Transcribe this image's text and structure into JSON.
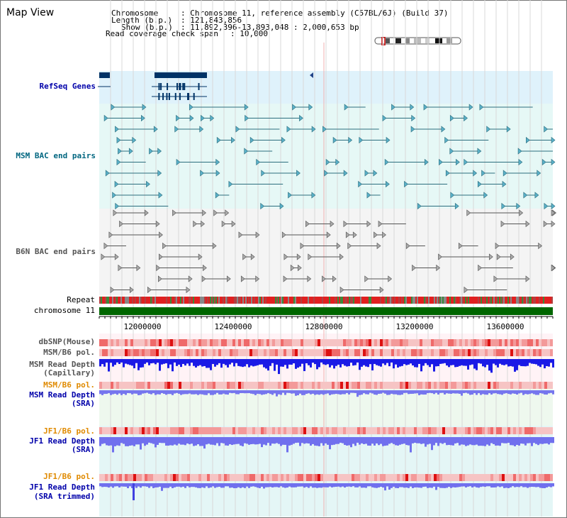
{
  "header": {
    "title": "Map View",
    "chromosome_key": "Chromosome",
    "chromosome_value": ": Chromosome 11, reference assembly (C57BL/6J) (Build 37)",
    "length_key": "Length (b.p.)",
    "length_value": ": 121,843,856",
    "show_key": "Show (b.p.)",
    "show_value": ": 11,892,396-13,893,048 : 2,000,653 bp",
    "coverage_key": "Read coverage check span",
    "coverage_value": ": 10,000"
  },
  "tracks": {
    "refseq": "RefSeq Genes",
    "msm_bac": "MSM BAC end pairs",
    "b6n_bac": "B6N BAC end pairs",
    "repeat": "Repeat",
    "chromosome": "chromosome 11",
    "dbsnp": "dbSNP(Mouse)",
    "msm_b6_pol_1": "MSM/B6 pol.",
    "msm_depth_cap_1": "MSM Read Depth",
    "msm_depth_cap_2": "(Capillary)",
    "msm_b6_pol_2": "MSM/B6 pol.",
    "msm_depth_sra_1": "MSM Read Depth",
    "msm_depth_sra_2": "(SRA)",
    "jf1_b6_pol_1": "JF1/B6 pol.",
    "jf1_depth_sra_1": "JF1 Read Depth",
    "jf1_depth_sra_2": "(SRA)",
    "jf1_b6_pol_2": "JF1/B6 pol.",
    "jf1_depth_trim_1": "JF1 Read Depth",
    "jf1_depth_trim_2": "(SRA trimmed)"
  },
  "axis": {
    "ticks": [
      "12000000",
      "12400000",
      "12800000",
      "13200000",
      "13600000"
    ],
    "range": [
      11892396,
      13893048
    ]
  },
  "colors": {
    "label_blue": "#0000aa",
    "label_teal": "#006680",
    "label_gray": "#555555",
    "label_orange": "#e08a00",
    "chromosome_green": "#006600",
    "depth_blue": "#0000dd",
    "depth_light": "#7070ee"
  }
}
